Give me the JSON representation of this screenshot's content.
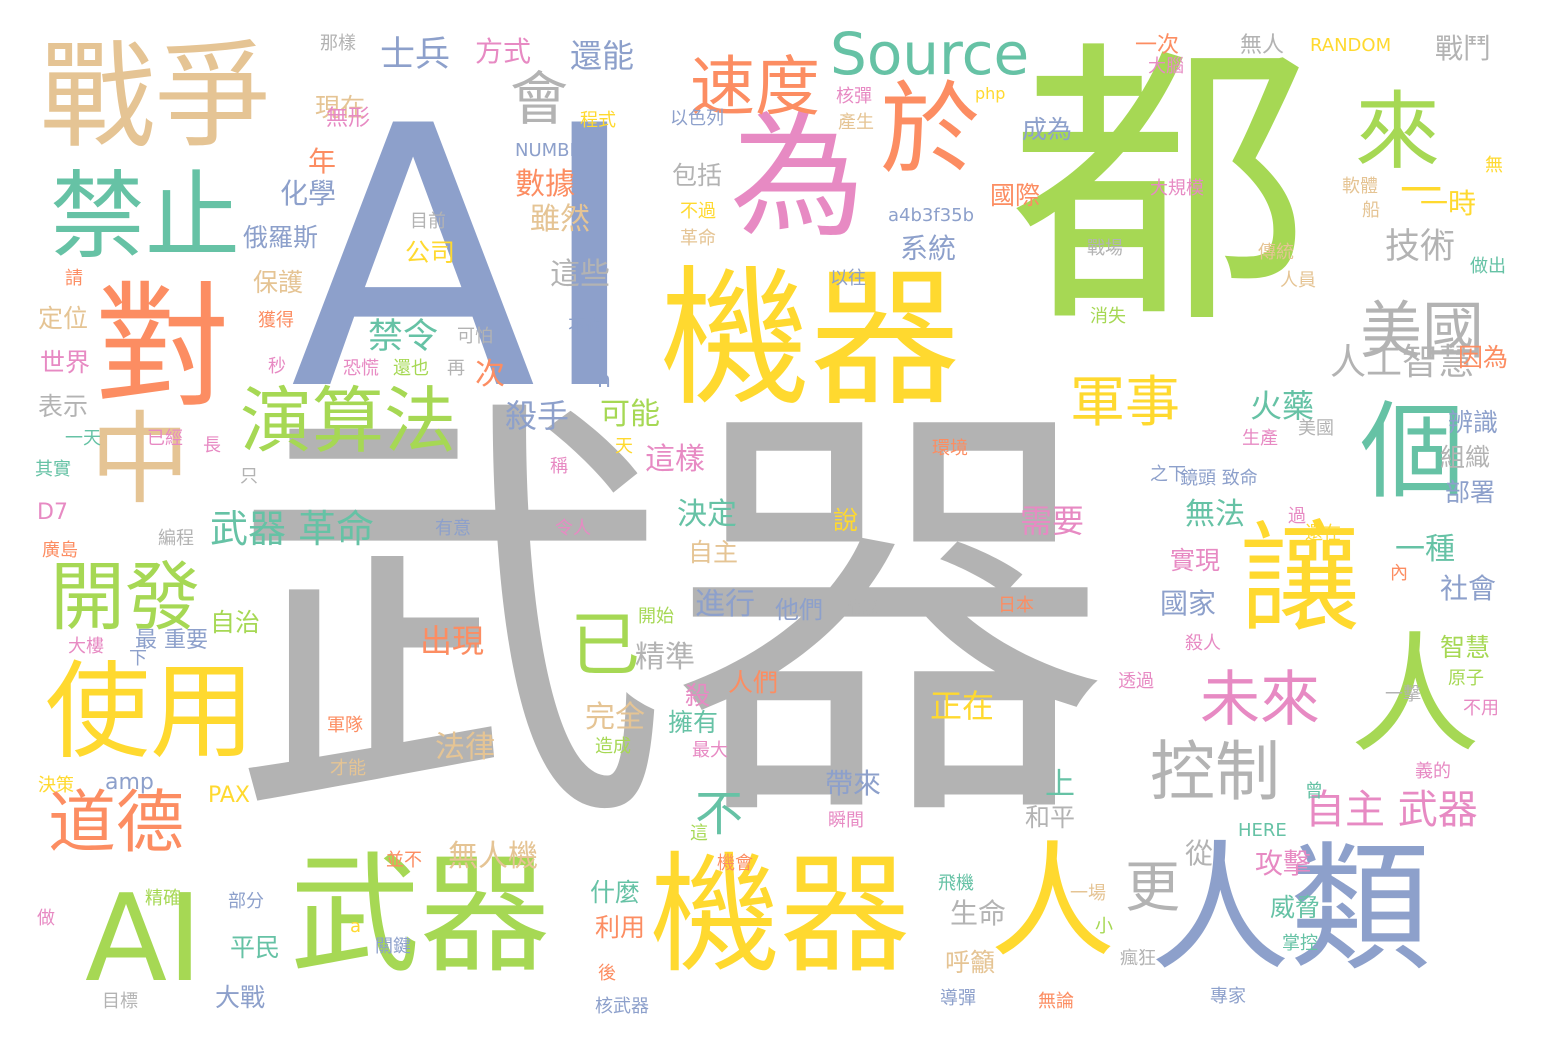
{
  "palette": {
    "gray": "#b3b3b3",
    "blue": "#8da0cb",
    "green": "#a6d854",
    "yellow": "#ffd92f",
    "orange": "#fc8d62",
    "teal": "#66c2a5",
    "pink": "#e78ac3",
    "tan": "#e5c494"
  },
  "words": [
    {
      "text": "武器",
      "color": "gray"
    },
    {
      "text": "AI",
      "color": "blue"
    },
    {
      "text": "都",
      "color": "green"
    },
    {
      "text": "機器",
      "color": "yellow"
    },
    {
      "text": "機器",
      "color": "yellow"
    },
    {
      "text": "武器",
      "color": "green"
    },
    {
      "text": "對",
      "color": "orange"
    },
    {
      "text": "為",
      "color": "pink"
    },
    {
      "text": "人類",
      "color": "blue"
    },
    {
      "text": "戰爭",
      "color": "tan"
    },
    {
      "text": "AI",
      "color": "green"
    },
    {
      "text": "人",
      "color": "yellow"
    },
    {
      "text": "人",
      "color": "green"
    },
    {
      "text": "讓",
      "color": "yellow"
    },
    {
      "text": "個",
      "color": "teal"
    },
    {
      "text": "於",
      "color": "orange"
    },
    {
      "text": "來",
      "color": "green"
    },
    {
      "text": "中",
      "color": "tan"
    },
    {
      "text": "禁止",
      "color": "teal"
    },
    {
      "text": "使用",
      "color": "yellow"
    },
    {
      "text": "Source",
      "color": "teal"
    },
    {
      "text": "演算法",
      "color": "green"
    },
    {
      "text": "開發",
      "color": "green"
    },
    {
      "text": "道德",
      "color": "orange"
    },
    {
      "text": "已",
      "color": "green"
    },
    {
      "text": "控制",
      "color": "gray"
    },
    {
      "text": "未來",
      "color": "pink"
    },
    {
      "text": "美國",
      "color": "gray"
    },
    {
      "text": "速度",
      "color": "orange"
    },
    {
      "text": "會",
      "color": "gray"
    },
    {
      "text": "軍事",
      "color": "yellow"
    },
    {
      "text": "更",
      "color": "gray"
    },
    {
      "text": "不",
      "color": "teal"
    },
    {
      "text": "一",
      "color": "yellow"
    },
    {
      "text": "一時",
      "color": "yellow"
    },
    {
      "text": "自主 武器",
      "color": "pink"
    },
    {
      "text": "人工智慧",
      "color": "gray"
    },
    {
      "text": "武器 革命",
      "color": "teal"
    },
    {
      "text": "數據",
      "color": "orange"
    },
    {
      "text": "雖然",
      "color": "tan"
    },
    {
      "text": "技術",
      "color": "gray"
    },
    {
      "text": "士兵",
      "color": "blue"
    },
    {
      "text": "方式",
      "color": "pink"
    },
    {
      "text": "還能",
      "color": "blue"
    },
    {
      "text": "戰鬥",
      "color": "gray"
    },
    {
      "text": "禁令",
      "color": "teal"
    },
    {
      "text": "殺手",
      "color": "blue"
    },
    {
      "text": "可能",
      "color": "green"
    },
    {
      "text": "這樣",
      "color": "pink"
    },
    {
      "text": "這些",
      "color": "gray"
    },
    {
      "text": "系統",
      "color": "blue"
    },
    {
      "text": "火藥",
      "color": "teal"
    },
    {
      "text": "決定",
      "color": "teal"
    },
    {
      "text": "無法",
      "color": "teal"
    },
    {
      "text": "一種",
      "color": "teal"
    },
    {
      "text": "社會",
      "color": "blue"
    },
    {
      "text": "國家",
      "color": "blue"
    },
    {
      "text": "進行",
      "color": "blue"
    },
    {
      "text": "他們",
      "color": "blue"
    },
    {
      "text": "出現",
      "color": "orange"
    },
    {
      "text": "精準",
      "color": "gray"
    },
    {
      "text": "完全",
      "color": "tan"
    },
    {
      "text": "擁有",
      "color": "teal"
    },
    {
      "text": "正在",
      "color": "yellow"
    },
    {
      "text": "法律",
      "color": "tan"
    },
    {
      "text": "需要",
      "color": "pink"
    },
    {
      "text": "說",
      "color": "yellow"
    },
    {
      "text": "帶來",
      "color": "blue"
    },
    {
      "text": "上",
      "color": "teal"
    },
    {
      "text": "和平",
      "color": "gray"
    },
    {
      "text": "攻擊",
      "color": "pink"
    },
    {
      "text": "威脅",
      "color": "teal"
    },
    {
      "text": "無人機",
      "color": "tan"
    },
    {
      "text": "生命",
      "color": "gray"
    },
    {
      "text": "呼籲",
      "color": "tan"
    },
    {
      "text": "什麼",
      "color": "teal"
    },
    {
      "text": "利用",
      "color": "orange"
    },
    {
      "text": "平民",
      "color": "teal"
    },
    {
      "text": "大戰",
      "color": "blue"
    },
    {
      "text": "化學",
      "color": "blue"
    },
    {
      "text": "保護",
      "color": "tan"
    },
    {
      "text": "俄羅斯",
      "color": "blue"
    },
    {
      "text": "年",
      "color": "orange"
    },
    {
      "text": "現在",
      "color": "tan"
    },
    {
      "text": "無形",
      "color": "pink"
    },
    {
      "text": "包括",
      "color": "gray"
    },
    {
      "text": "成為",
      "color": "blue"
    },
    {
      "text": "國際",
      "color": "orange"
    },
    {
      "text": "公司",
      "color": "yellow"
    },
    {
      "text": "世界",
      "color": "pink"
    },
    {
      "text": "定位",
      "color": "tan"
    },
    {
      "text": "表示",
      "color": "gray"
    },
    {
      "text": "辨識",
      "color": "blue"
    },
    {
      "text": "組織",
      "color": "gray"
    },
    {
      "text": "部署",
      "color": "blue"
    },
    {
      "text": "智慧",
      "color": "green"
    },
    {
      "text": "因為",
      "color": "orange"
    },
    {
      "text": "實現",
      "color": "pink"
    },
    {
      "text": "人們",
      "color": "orange"
    },
    {
      "text": "自主",
      "color": "tan"
    },
    {
      "text": "自治",
      "color": "green"
    },
    {
      "text": "最 重要",
      "color": "blue"
    },
    {
      "text": "次",
      "color": "orange"
    },
    {
      "text": "從",
      "color": "gray"
    },
    {
      "text": "殺",
      "color": "pink"
    },
    {
      "text": "n",
      "color": "blue"
    },
    {
      "text": "amp",
      "color": "blue"
    },
    {
      "text": "PAX",
      "color": "yellow"
    },
    {
      "text": "D7",
      "color": "pink"
    },
    {
      "text": "RANDOM",
      "color": "yellow"
    },
    {
      "text": "NUMBER",
      "color": "blue"
    },
    {
      "text": "a4b3f35b",
      "color": "blue"
    },
    {
      "text": "php",
      "color": "yellow"
    },
    {
      "text": "HERE",
      "color": "teal"
    },
    {
      "text": "一次",
      "color": "orange"
    },
    {
      "text": "無人",
      "color": "gray"
    },
    {
      "text": "那樣",
      "color": "gray"
    },
    {
      "text": "以色列",
      "color": "blue"
    },
    {
      "text": "核彈",
      "color": "pink"
    },
    {
      "text": "產生",
      "color": "tan"
    },
    {
      "text": "大腦",
      "color": "pink"
    },
    {
      "text": "程式",
      "color": "yellow"
    },
    {
      "text": "目前",
      "color": "gray"
    },
    {
      "text": "不過",
      "color": "yellow"
    },
    {
      "text": "革命",
      "color": "tan"
    },
    {
      "text": "以往",
      "color": "blue"
    },
    {
      "text": "大規模",
      "color": "pink"
    },
    {
      "text": "戰場",
      "color": "gray"
    },
    {
      "text": "消失",
      "color": "green"
    },
    {
      "text": "人員",
      "color": "tan"
    },
    {
      "text": "傳統",
      "color": "tan"
    },
    {
      "text": "軟體",
      "color": "tan"
    },
    {
      "text": "船",
      "color": "tan"
    },
    {
      "text": "無",
      "color": "yellow"
    },
    {
      "text": "做出",
      "color": "teal"
    },
    {
      "text": "可怕",
      "color": "gray"
    },
    {
      "text": "不僅",
      "color": "blue"
    },
    {
      "text": "恐慌",
      "color": "pink"
    },
    {
      "text": "還也",
      "color": "green"
    },
    {
      "text": "再",
      "color": "gray"
    },
    {
      "text": "秒",
      "color": "pink"
    },
    {
      "text": "獲得",
      "color": "orange"
    },
    {
      "text": "請",
      "color": "orange"
    },
    {
      "text": "只",
      "color": "gray"
    },
    {
      "text": "一天",
      "color": "teal"
    },
    {
      "text": "已經",
      "color": "pink"
    },
    {
      "text": "長",
      "color": "pink"
    },
    {
      "text": "其實",
      "color": "teal"
    },
    {
      "text": "天",
      "color": "yellow"
    },
    {
      "text": "稱",
      "color": "pink"
    },
    {
      "text": "環境",
      "color": "orange"
    },
    {
      "text": "生產",
      "color": "pink"
    },
    {
      "text": "美國",
      "color": "gray"
    },
    {
      "text": "鏡頭 致命",
      "color": "blue"
    },
    {
      "text": "之下",
      "color": "blue"
    },
    {
      "text": "過",
      "color": "pink"
    },
    {
      "text": "還在",
      "color": "yellow"
    },
    {
      "text": "內",
      "color": "orange"
    },
    {
      "text": "編程",
      "color": "gray"
    },
    {
      "text": "廣島",
      "color": "orange"
    },
    {
      "text": "有意",
      "color": "blue"
    },
    {
      "text": "令人",
      "color": "pink"
    },
    {
      "text": "開始",
      "color": "green"
    },
    {
      "text": "難以",
      "color": "gray"
    },
    {
      "text": "日本",
      "color": "orange"
    },
    {
      "text": "大樓",
      "color": "pink"
    },
    {
      "text": "下",
      "color": "blue"
    },
    {
      "text": "殺人",
      "color": "pink"
    },
    {
      "text": "原子",
      "color": "green"
    },
    {
      "text": "一擊",
      "color": "gray"
    },
    {
      "text": "不用",
      "color": "pink"
    },
    {
      "text": "透過",
      "color": "pink"
    },
    {
      "text": "軍隊",
      "color": "orange"
    },
    {
      "text": "才能",
      "color": "tan"
    },
    {
      "text": "造成",
      "color": "green"
    },
    {
      "text": "最大",
      "color": "pink"
    },
    {
      "text": "決策",
      "color": "yellow"
    },
    {
      "text": "瞬間",
      "color": "pink"
    },
    {
      "text": "義的",
      "color": "pink"
    },
    {
      "text": "曾",
      "color": "teal"
    },
    {
      "text": "這",
      "color": "green"
    },
    {
      "text": "機會",
      "color": "orange"
    },
    {
      "text": "並不",
      "color": "orange"
    },
    {
      "text": "精確",
      "color": "green"
    },
    {
      "text": "部分",
      "color": "blue"
    },
    {
      "text": "做",
      "color": "pink"
    },
    {
      "text": "a",
      "color": "yellow"
    },
    {
      "text": "關鍵",
      "color": "blue"
    },
    {
      "text": "後",
      "color": "orange"
    },
    {
      "text": "核武器",
      "color": "blue"
    },
    {
      "text": "飛機",
      "color": "teal"
    },
    {
      "text": "導彈",
      "color": "blue"
    },
    {
      "text": "無論",
      "color": "orange"
    },
    {
      "text": "一場",
      "color": "tan"
    },
    {
      "text": "小",
      "color": "green"
    },
    {
      "text": "瘋狂",
      "color": "gray"
    },
    {
      "text": "掌控",
      "color": "teal"
    },
    {
      "text": "專家",
      "color": "blue"
    },
    {
      "text": "目標",
      "color": "gray"
    }
  ]
}
